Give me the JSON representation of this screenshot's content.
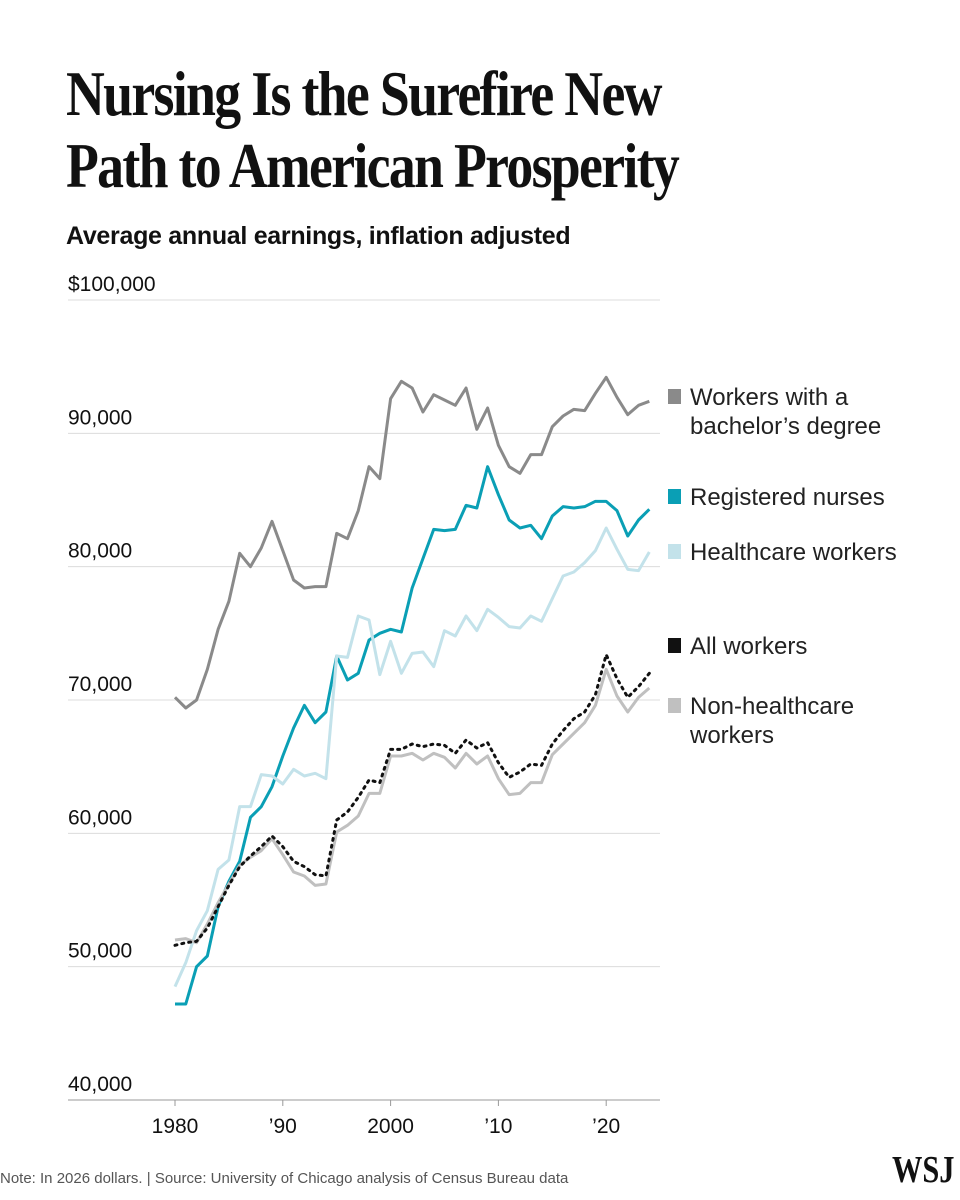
{
  "title_lines": [
    "Nursing Is the Surefire New",
    "Path to American Prosperity"
  ],
  "subtitle": "Average annual earnings, inflation adjusted",
  "note": "Note: In 2026 dollars. | Source: University of Chicago analysis of Census Bureau data",
  "logo": "WSJ",
  "chart_data": {
    "type": "line",
    "title": "Nursing Is the Surefire New Path to American Prosperity",
    "subtitle": "Average annual earnings, inflation adjusted",
    "ylim": [
      40000,
      100000
    ],
    "xlim": [
      1980,
      2024
    ],
    "grid": true,
    "legend": "right",
    "yticks": [
      {
        "v": 100000,
        "label": "$100,000"
      },
      {
        "v": 90000,
        "label": "90,000"
      },
      {
        "v": 80000,
        "label": "80,000"
      },
      {
        "v": 70000,
        "label": "70,000"
      },
      {
        "v": 60000,
        "label": "60,000"
      },
      {
        "v": 50000,
        "label": "50,000"
      },
      {
        "v": 40000,
        "label": "40,000"
      }
    ],
    "xticks": [
      {
        "v": 1980,
        "label": "1980"
      },
      {
        "v": 1990,
        "label": "’90"
      },
      {
        "v": 2000,
        "label": "2000"
      },
      {
        "v": 2010,
        "label": "’10"
      },
      {
        "v": 2020,
        "label": "’20"
      }
    ],
    "x_start": 1980,
    "series": [
      {
        "name": [
          "Workers with a",
          "bachelor’s degree"
        ],
        "color": "#8a8a8a",
        "dash": false,
        "values": [
          70200,
          69400,
          70000,
          72300,
          75300,
          77400,
          81000,
          80000,
          81400,
          83400,
          81200,
          79000,
          78400,
          78500,
          78500,
          82500,
          82100,
          84200,
          87500,
          86600,
          92600,
          93900,
          93400,
          91600,
          92900,
          92500,
          92100,
          93400,
          90300,
          91900,
          89100,
          87500,
          87000,
          88400,
          88400,
          90500,
          91300,
          91800,
          91700,
          93000,
          94200,
          92700,
          91400,
          92100,
          92400
        ]
      },
      {
        "name": [
          "Registered nurses"
        ],
        "color": "#0a9fb5",
        "dash": false,
        "values": [
          47200,
          47200,
          50000,
          50800,
          54500,
          56400,
          57900,
          61200,
          62000,
          63500,
          65800,
          67900,
          69600,
          68300,
          69100,
          73300,
          71500,
          72000,
          74500,
          75000,
          75300,
          75100,
          78400,
          80600,
          82800,
          82700,
          82800,
          84600,
          84400,
          87500,
          85400,
          83500,
          82900,
          83100,
          82100,
          83800,
          84500,
          84400,
          84500,
          84900,
          84900,
          84200,
          82300,
          83500,
          84300
        ]
      },
      {
        "name": [
          "Healthcare workers"
        ],
        "color": "#c3e2ea",
        "dash": false,
        "values": [
          48500,
          50300,
          52700,
          54200,
          57300,
          58000,
          62000,
          62000,
          64400,
          64300,
          63700,
          64800,
          64300,
          64500,
          64100,
          73300,
          73200,
          76300,
          76000,
          71900,
          74400,
          72000,
          73500,
          73600,
          72500,
          75200,
          74800,
          76300,
          75200,
          76800,
          76200,
          75500,
          75400,
          76300,
          75900,
          77600,
          79300,
          79600,
          80300,
          81200,
          82900,
          81300,
          79800,
          79700,
          81100
        ]
      },
      {
        "name": [
          "Non-healthcare",
          "workers"
        ],
        "color": "#c0c0c0",
        "dash": false,
        "values": [
          52000,
          52100,
          51800,
          53200,
          54800,
          56200,
          57600,
          58200,
          58700,
          59600,
          58400,
          57100,
          56800,
          56100,
          56200,
          60100,
          60600,
          61300,
          63000,
          63000,
          65800,
          65800,
          66000,
          65500,
          66000,
          65700,
          64900,
          66000,
          65200,
          65800,
          64100,
          62900,
          63000,
          63800,
          63800,
          65900,
          66700,
          67500,
          68300,
          69600,
          72300,
          70300,
          69100,
          70200,
          70900
        ]
      },
      {
        "name": [
          "All workers"
        ],
        "color": "#111111",
        "dash": true,
        "values": [
          51600,
          51800,
          51900,
          52900,
          54500,
          56100,
          57500,
          58300,
          59000,
          59800,
          59000,
          57900,
          57500,
          56900,
          56800,
          61000,
          61600,
          62700,
          64000,
          63800,
          66300,
          66300,
          66700,
          66500,
          66700,
          66600,
          66000,
          67000,
          66400,
          66800,
          65300,
          64200,
          64600,
          65200,
          65100,
          66700,
          67700,
          68600,
          69100,
          70400,
          73400,
          71600,
          70200,
          71000,
          72000
        ]
      }
    ]
  }
}
